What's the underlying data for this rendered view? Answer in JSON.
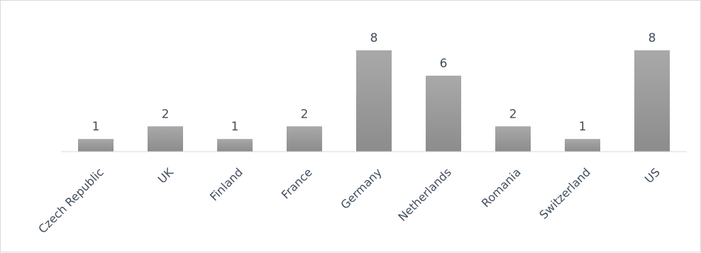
{
  "chart_data": {
    "type": "bar",
    "title": "",
    "xlabel": "",
    "ylabel": "",
    "categories": [
      "Czech Republic",
      "UK",
      "Finland",
      "France",
      "Germany",
      "Netherlands",
      "Romania",
      "Switzerland",
      "US"
    ],
    "values": [
      1,
      2,
      1,
      2,
      8,
      6,
      2,
      1,
      8
    ],
    "ylim": [
      0,
      8
    ],
    "grid": false,
    "legend": "none",
    "data_labels": true,
    "colors": {
      "bar_top": "#a9a9a9",
      "bar_bottom": "#8c8c8c",
      "axis": "#d9d9d9",
      "text": "#404d5c"
    }
  }
}
